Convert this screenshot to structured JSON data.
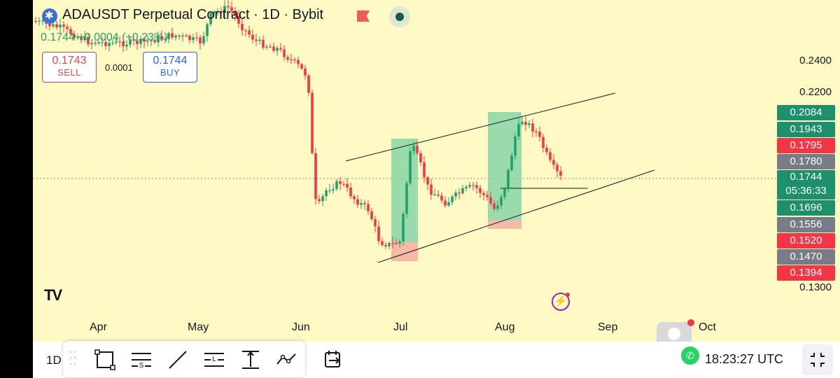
{
  "header": {
    "title": "ADAUSDT Perpetual Contract · 1D · Bybit",
    "change_text": "0.1744  +0.0004 (+0.23%)"
  },
  "order_buttons": {
    "sell_price": "0.1743",
    "sell_label": "SELL",
    "spread": "0.0001",
    "buy_price": "0.1744",
    "buy_label": "BUY"
  },
  "price_axis": {
    "labels": [
      "0.2400",
      "0.2200",
      "0.1300"
    ],
    "tags": [
      {
        "value": "0.2084",
        "color": "#1e8f6b"
      },
      {
        "value": "0.1943",
        "color": "#1e8f6b"
      },
      {
        "value": "0.1795",
        "color": "#f23645"
      },
      {
        "value": "0.1780",
        "color": "#787b86"
      },
      {
        "value": "0.1744",
        "sub": "05:36:33",
        "color": "#1e8f6b"
      },
      {
        "value": "0.1696",
        "color": "#1e8f6b"
      },
      {
        "value": "0.1556",
        "color": "#787b86"
      },
      {
        "value": "0.1520",
        "color": "#f23645"
      },
      {
        "value": "0.1470",
        "color": "#787b86"
      },
      {
        "value": "0.1394",
        "color": "#f23645"
      }
    ]
  },
  "time_axis": {
    "months": [
      "Apr",
      "May",
      "Jun",
      "Jul",
      "Aug",
      "Sep",
      "Oct"
    ]
  },
  "toolbar": {
    "interval": "1D",
    "clock": "18:23:27 UTC",
    "tools": [
      "rectangle-tool-icon",
      "fib-s-tool-icon",
      "trend-line-icon",
      "fib-l-tool-icon",
      "measure-tool-icon",
      "path-tool-icon",
      "replay-icon"
    ]
  },
  "branding": {
    "logo": "TV"
  },
  "colors": {
    "up": "#22a06b",
    "down": "#f23645",
    "background": "#fff9c4",
    "long_zone": "#7fd3a4",
    "stop_zone": "#f6a99f"
  }
}
